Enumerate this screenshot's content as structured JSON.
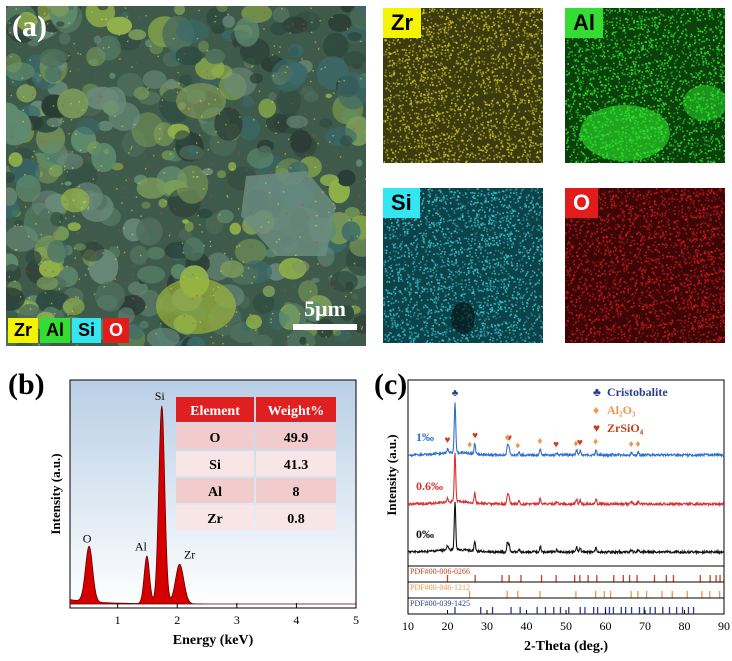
{
  "panel_a": {
    "label": "(a)",
    "scalebar": "5μm",
    "legend": [
      {
        "text": "Zr",
        "bg": "#f4f400",
        "fg": "#000000"
      },
      {
        "text": "Al",
        "bg": "#33dd33",
        "fg": "#000000"
      },
      {
        "text": "Si",
        "bg": "#33e6f0",
        "fg": "#000000"
      },
      {
        "text": "O",
        "bg": "#e21b1b",
        "fg": "#ffffff"
      }
    ],
    "maps": [
      {
        "element": "Zr",
        "color": "#c8c423",
        "bg": "#3b3a10",
        "tag_bg": "#f4f400",
        "tag_fg": "#000000"
      },
      {
        "element": "Al",
        "color": "#2ee82e",
        "bg": "#0b3f0b",
        "tag_bg": "#33dd33",
        "tag_fg": "#000000"
      },
      {
        "element": "Si",
        "color": "#37c6cf",
        "bg": "#0c4248",
        "tag_bg": "#33e6f0",
        "tag_fg": "#000000"
      },
      {
        "element": "O",
        "color": "#d21a1a",
        "bg": "#3c0606",
        "tag_bg": "#e21b1b",
        "tag_fg": "#ffffff"
      }
    ]
  },
  "panel_b": {
    "label": "(b)"
  },
  "panel_c": {
    "label": "(c)"
  },
  "chart_data": [
    {
      "type": "line",
      "panel": "b",
      "xlabel": "Energy (keV)",
      "ylabel": "Intensity (a.u.)",
      "xlim": [
        0.2,
        5
      ],
      "xticks": [
        1,
        2,
        3,
        4,
        5
      ],
      "fill_color": "#d40000",
      "peaks": [
        {
          "label": "O",
          "x": 0.52,
          "height": 0.28
        },
        {
          "label": "Al",
          "x": 1.49,
          "height": 0.24
        },
        {
          "label": "Si",
          "x": 1.74,
          "height": 1.0
        },
        {
          "label": "Zr",
          "x": 2.04,
          "height": 0.2
        }
      ],
      "table": {
        "headers": [
          "Element",
          "Weight%"
        ],
        "rows": [
          [
            "O",
            "49.9"
          ],
          [
            "Si",
            "41.3"
          ],
          [
            "Al",
            "8"
          ],
          [
            "Zr",
            "0.8"
          ]
        ]
      }
    },
    {
      "type": "line",
      "panel": "c",
      "xlabel": "2-Theta (deg.)",
      "ylabel": "Intensity (a.u.)",
      "xlim": [
        10,
        90
      ],
      "xticks": [
        10,
        20,
        30,
        40,
        50,
        60,
        70,
        80,
        90
      ],
      "series": [
        {
          "name": "1‰",
          "color": "#2f6fcf"
        },
        {
          "name": "0.6‰",
          "color": "#d93030"
        },
        {
          "name": "0‰",
          "color": "#111111"
        }
      ],
      "peaks_2theta": [
        20.0,
        21.9,
        26.9,
        35.2,
        35.6,
        38.1,
        43.5,
        47.7,
        52.7,
        53.6,
        57.6,
        66.6,
        68.3
      ],
      "peak_heights": [
        0.08,
        1.0,
        0.22,
        0.2,
        0.14,
        0.06,
        0.12,
        0.05,
        0.1,
        0.08,
        0.1,
        0.05,
        0.05
      ],
      "legend": [
        {
          "marker": "♣",
          "text": "Cristobalite",
          "color": "#2a3c8f"
        },
        {
          "marker": "♦",
          "text": "Al₂O₃",
          "color": "#f0964a"
        },
        {
          "marker": "♥",
          "text": "ZrSiO₄",
          "color": "#c8401e"
        }
      ],
      "markers": [
        {
          "symbol": "♣",
          "x": 21.9,
          "color": "#2a3c8f"
        },
        {
          "symbol": "♥",
          "x": 20.0,
          "color": "#c8401e"
        },
        {
          "symbol": "♥",
          "x": 27.0,
          "color": "#c8401e"
        },
        {
          "symbol": "♦",
          "x": 25.6,
          "color": "#f0964a"
        },
        {
          "symbol": "♥",
          "x": 35.6,
          "color": "#c8401e"
        },
        {
          "symbol": "♦",
          "x": 35.1,
          "color": "#f0964a"
        },
        {
          "symbol": "♦",
          "x": 37.8,
          "color": "#f0964a"
        },
        {
          "symbol": "♦",
          "x": 43.4,
          "color": "#f0964a"
        },
        {
          "symbol": "♥",
          "x": 47.5,
          "color": "#c8401e"
        },
        {
          "symbol": "♦",
          "x": 52.5,
          "color": "#f0964a"
        },
        {
          "symbol": "♥",
          "x": 53.5,
          "color": "#c8401e"
        },
        {
          "symbol": "♦",
          "x": 57.5,
          "color": "#f0964a"
        },
        {
          "symbol": "♦",
          "x": 66.5,
          "color": "#f0964a"
        },
        {
          "symbol": "♦",
          "x": 68.2,
          "color": "#f0964a"
        }
      ],
      "references": [
        {
          "name": "PDF#00-006-0266",
          "color": "#c8401e",
          "positions": [
            20.0,
            27.0,
            33.8,
            35.6,
            38.6,
            43.8,
            47.5,
            52.2,
            53.5,
            55.6,
            57.8,
            62.1,
            64.5,
            66.1,
            68.0,
            72.4,
            75.4,
            77.2,
            84.0,
            86.5,
            88.0,
            89.0
          ]
        },
        {
          "name": "PDF#00-046-1212",
          "color": "#f0964a",
          "positions": [
            25.6,
            35.1,
            37.8,
            43.4,
            52.5,
            57.5,
            59.7,
            61.3,
            66.5,
            68.2,
            70.4,
            74.3,
            76.9,
            80.7,
            84.4,
            86.4,
            88.9
          ]
        },
        {
          "name": "PDF#00-039-1425",
          "color": "#2a3c8f",
          "positions": [
            21.9,
            28.4,
            31.4,
            36.1,
            38.4,
            42.7,
            44.8,
            46.9,
            48.6,
            50.7,
            53.6,
            54.8,
            57.0,
            58.0,
            60.0,
            61.0,
            62.0,
            64.0,
            65.1,
            66.6,
            68.6,
            69.8,
            71.3,
            72.6,
            74.5,
            76.2,
            78.0,
            79.5,
            81.0,
            82.3
          ]
        }
      ]
    }
  ]
}
